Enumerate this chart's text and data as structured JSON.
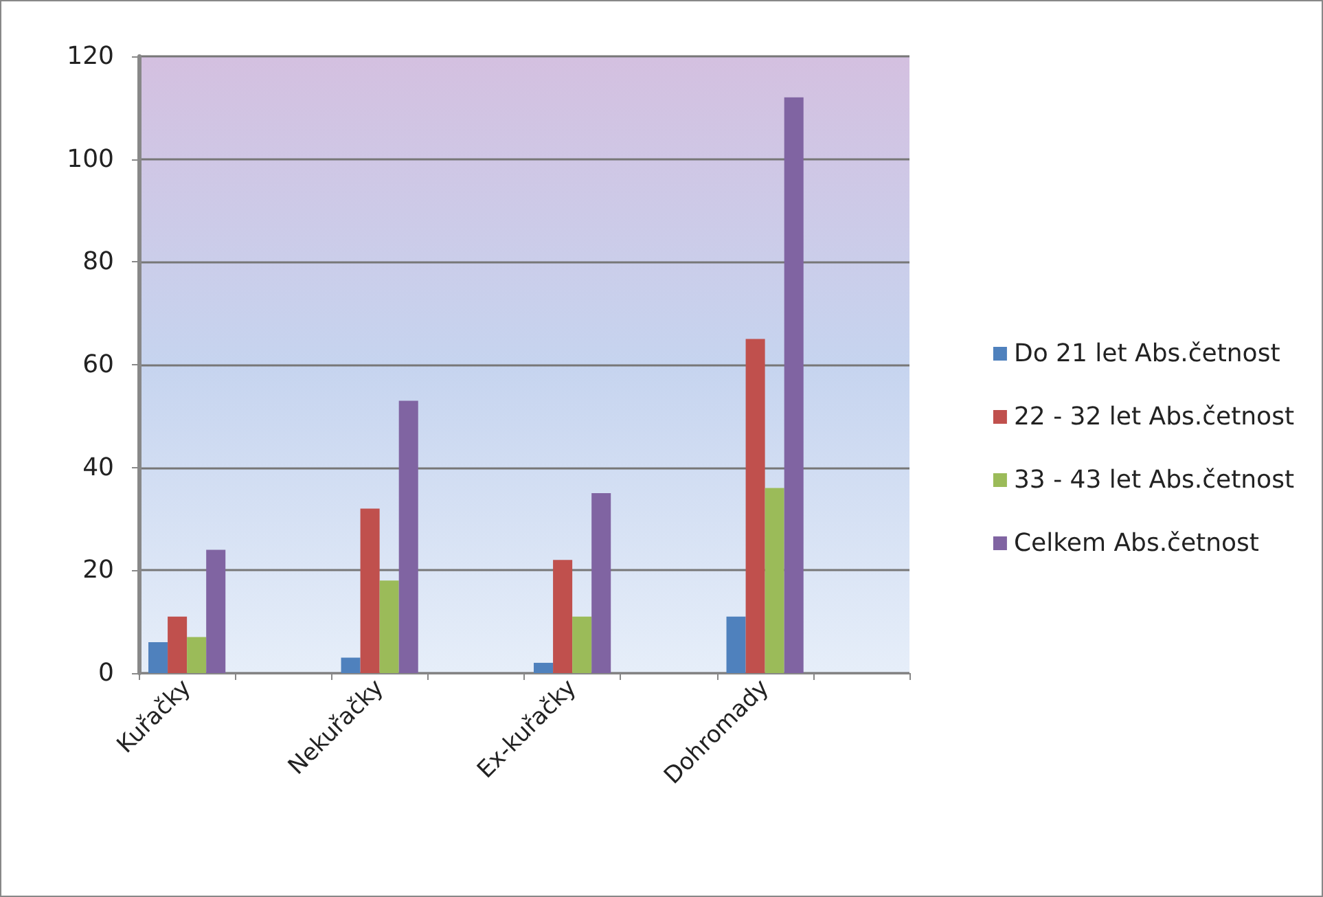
{
  "chart_data": {
    "type": "bar",
    "categories": [
      "Kuřačky",
      null,
      "Nekuřačky",
      null,
      "Ex-kuřačky",
      null,
      "Dohromady",
      null
    ],
    "series": [
      {
        "name": "Do 21 let Abs.četnost",
        "color": "#4f81bd",
        "values": [
          6,
          0,
          3,
          0,
          2,
          0,
          11,
          0
        ]
      },
      {
        "name": "22 - 32 let Abs.četnost",
        "color": "#c0504d",
        "values": [
          11,
          0,
          32,
          0,
          22,
          0,
          65,
          0
        ]
      },
      {
        "name": "33 - 43 let Abs.četnost",
        "color": "#9bbb59",
        "values": [
          7,
          0,
          18,
          0,
          11,
          0,
          36,
          0
        ]
      },
      {
        "name": "Celkem Abs.četnost",
        "color": "#8064a2",
        "values": [
          24,
          0,
          53,
          0,
          35,
          0,
          112,
          0
        ]
      }
    ],
    "ylim": [
      0,
      120
    ],
    "yticks": [
      0,
      20,
      40,
      60,
      80,
      100,
      120
    ],
    "grid": "y",
    "legend": "right"
  }
}
